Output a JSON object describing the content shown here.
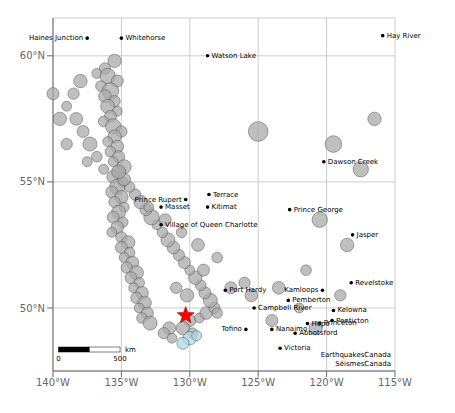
{
  "chart_data": {
    "type": "scatter",
    "xlim": [
      -140,
      -115
    ],
    "ylim": [
      47.5,
      61.5
    ],
    "xticks": [
      {
        "value": -140,
        "label": "140°W"
      },
      {
        "value": -135,
        "label": "135°W"
      },
      {
        "value": -130,
        "label": "130°W"
      },
      {
        "value": -125,
        "label": "125°W"
      },
      {
        "value": -120,
        "label": "120°W"
      },
      {
        "value": -115,
        "label": "115°W"
      }
    ],
    "yticks": [
      {
        "value": 50,
        "label": "50°N"
      },
      {
        "value": 55,
        "label": "55°N"
      },
      {
        "value": 60,
        "label": "60°N"
      }
    ],
    "grid": true,
    "series": [
      {
        "marker": "circle",
        "color": "#aaaaaa",
        "points": [
          {
            "x": -135.5,
            "y": 59.8,
            "mag": 5.5
          },
          {
            "x": -136.2,
            "y": 59.5,
            "mag": 5.2
          },
          {
            "x": -136.8,
            "y": 59.3,
            "mag": 5.0
          },
          {
            "x": -136.0,
            "y": 59.2,
            "mag": 5.8
          },
          {
            "x": -135.3,
            "y": 59.0,
            "mag": 5.3
          },
          {
            "x": -136.5,
            "y": 58.8,
            "mag": 5.1
          },
          {
            "x": -135.8,
            "y": 58.6,
            "mag": 6.0
          },
          {
            "x": -136.2,
            "y": 58.4,
            "mag": 5.4
          },
          {
            "x": -135.5,
            "y": 58.2,
            "mag": 5.2
          },
          {
            "x": -136.0,
            "y": 58.0,
            "mag": 5.6
          },
          {
            "x": -135.3,
            "y": 57.8,
            "mag": 5.0
          },
          {
            "x": -135.8,
            "y": 57.6,
            "mag": 5.3
          },
          {
            "x": -136.3,
            "y": 57.4,
            "mag": 5.1
          },
          {
            "x": -135.6,
            "y": 57.2,
            "mag": 5.8
          },
          {
            "x": -135.0,
            "y": 57.0,
            "mag": 5.2
          },
          {
            "x": -135.5,
            "y": 56.8,
            "mag": 5.5
          },
          {
            "x": -136.0,
            "y": 56.6,
            "mag": 5.0
          },
          {
            "x": -135.3,
            "y": 56.4,
            "mag": 5.4
          },
          {
            "x": -135.8,
            "y": 56.2,
            "mag": 5.1
          },
          {
            "x": -135.2,
            "y": 56.0,
            "mag": 5.3
          },
          {
            "x": -135.6,
            "y": 55.8,
            "mag": 5.0
          },
          {
            "x": -134.8,
            "y": 55.6,
            "mag": 5.6
          },
          {
            "x": -135.2,
            "y": 55.4,
            "mag": 5.2
          },
          {
            "x": -135.6,
            "y": 55.2,
            "mag": 5.4
          },
          {
            "x": -134.9,
            "y": 55.0,
            "mag": 5.1
          },
          {
            "x": -135.3,
            "y": 54.8,
            "mag": 5.8
          },
          {
            "x": -135.7,
            "y": 54.6,
            "mag": 5.3
          },
          {
            "x": -135.0,
            "y": 54.4,
            "mag": 5.5
          },
          {
            "x": -135.5,
            "y": 54.2,
            "mag": 5.2
          },
          {
            "x": -134.8,
            "y": 54.0,
            "mag": 5.0
          },
          {
            "x": -135.2,
            "y": 53.8,
            "mag": 5.6
          },
          {
            "x": -135.6,
            "y": 53.6,
            "mag": 5.3
          },
          {
            "x": -134.9,
            "y": 53.4,
            "mag": 5.1
          },
          {
            "x": -135.3,
            "y": 53.2,
            "mag": 5.4
          },
          {
            "x": -135.7,
            "y": 53.0,
            "mag": 5.0
          },
          {
            "x": -135.0,
            "y": 52.8,
            "mag": 5.2
          },
          {
            "x": -134.5,
            "y": 52.6,
            "mag": 5.5
          },
          {
            "x": -135.0,
            "y": 52.4,
            "mag": 5.3
          },
          {
            "x": -134.4,
            "y": 52.2,
            "mag": 5.1
          },
          {
            "x": -134.8,
            "y": 52.0,
            "mag": 5.0
          },
          {
            "x": -134.2,
            "y": 51.8,
            "mag": 5.4
          },
          {
            "x": -134.6,
            "y": 51.6,
            "mag": 5.2
          },
          {
            "x": -133.9,
            "y": 51.4,
            "mag": 5.6
          },
          {
            "x": -134.3,
            "y": 51.2,
            "mag": 5.3
          },
          {
            "x": -133.7,
            "y": 51.0,
            "mag": 5.1
          },
          {
            "x": -134.1,
            "y": 50.8,
            "mag": 5.0
          },
          {
            "x": -133.5,
            "y": 50.6,
            "mag": 5.4
          },
          {
            "x": -133.9,
            "y": 50.4,
            "mag": 5.2
          },
          {
            "x": -133.3,
            "y": 50.2,
            "mag": 5.5
          },
          {
            "x": -133.7,
            "y": 50.0,
            "mag": 5.0
          },
          {
            "x": -133.1,
            "y": 49.8,
            "mag": 5.3
          },
          {
            "x": -133.5,
            "y": 49.6,
            "mag": 5.1
          },
          {
            "x": -132.9,
            "y": 49.4,
            "mag": 5.6
          },
          {
            "x": -131.5,
            "y": 49.2,
            "mag": 5.4
          },
          {
            "x": -131.9,
            "y": 49.0,
            "mag": 5.2
          },
          {
            "x": -131.3,
            "y": 48.8,
            "mag": 5.0
          },
          {
            "x": -130.0,
            "y": 49.5,
            "mag": 5.3
          },
          {
            "x": -130.5,
            "y": 49.2,
            "mag": 5.5
          },
          {
            "x": -129.8,
            "y": 49.0,
            "mag": 5.1
          },
          {
            "x": -129.3,
            "y": 49.6,
            "mag": 5.0
          },
          {
            "x": -128.8,
            "y": 49.8,
            "mag": 5.4
          },
          {
            "x": -128.2,
            "y": 50.0,
            "mag": 5.2
          },
          {
            "x": -128.5,
            "y": 50.3,
            "mag": 5.6
          },
          {
            "x": -128.9,
            "y": 50.6,
            "mag": 5.3
          },
          {
            "x": -129.2,
            "y": 50.9,
            "mag": 5.1
          },
          {
            "x": -129.6,
            "y": 51.2,
            "mag": 5.5
          },
          {
            "x": -130.0,
            "y": 51.5,
            "mag": 5.0
          },
          {
            "x": -130.4,
            "y": 51.8,
            "mag": 5.3
          },
          {
            "x": -130.8,
            "y": 52.1,
            "mag": 5.2
          },
          {
            "x": -131.2,
            "y": 52.4,
            "mag": 5.4
          },
          {
            "x": -131.6,
            "y": 52.7,
            "mag": 5.6
          },
          {
            "x": -132.0,
            "y": 53.0,
            "mag": 5.1
          },
          {
            "x": -132.4,
            "y": 53.3,
            "mag": 5.0
          },
          {
            "x": -132.8,
            "y": 53.6,
            "mag": 5.8
          },
          {
            "x": -133.2,
            "y": 53.9,
            "mag": 5.3
          },
          {
            "x": -133.6,
            "y": 54.2,
            "mag": 5.5
          },
          {
            "x": -134.0,
            "y": 54.5,
            "mag": 5.2
          },
          {
            "x": -134.4,
            "y": 54.8,
            "mag": 5.1
          },
          {
            "x": -134.8,
            "y": 55.1,
            "mag": 5.4
          },
          {
            "x": -135.2,
            "y": 55.4,
            "mag": 5.6
          },
          {
            "x": -133.0,
            "y": 54.0,
            "mag": 5.0
          },
          {
            "x": -131.8,
            "y": 53.5,
            "mag": 5.3
          },
          {
            "x": -130.6,
            "y": 53.0,
            "mag": 5.1
          },
          {
            "x": -129.4,
            "y": 52.5,
            "mag": 5.4
          },
          {
            "x": -131.0,
            "y": 50.8,
            "mag": 5.2
          },
          {
            "x": -130.2,
            "y": 50.5,
            "mag": 5.5
          },
          {
            "x": -129.0,
            "y": 51.5,
            "mag": 5.3
          },
          {
            "x": -128.0,
            "y": 52.0,
            "mag": 5.1
          },
          {
            "x": -138.0,
            "y": 59.0,
            "mag": 5.5
          },
          {
            "x": -138.5,
            "y": 58.5,
            "mag": 5.2
          },
          {
            "x": -139.0,
            "y": 58.0,
            "mag": 5.0
          },
          {
            "x": -138.3,
            "y": 57.5,
            "mag": 5.4
          },
          {
            "x": -137.8,
            "y": 57.0,
            "mag": 5.3
          },
          {
            "x": -137.3,
            "y": 56.5,
            "mag": 5.6
          },
          {
            "x": -136.8,
            "y": 56.0,
            "mag": 5.1
          },
          {
            "x": -136.3,
            "y": 55.5,
            "mag": 5.0
          },
          {
            "x": -140.0,
            "y": 58.5,
            "mag": 5.3
          },
          {
            "x": -139.5,
            "y": 57.5,
            "mag": 5.5
          },
          {
            "x": -139.0,
            "y": 56.5,
            "mag": 5.2
          },
          {
            "x": -137.5,
            "y": 55.8,
            "mag": 5.0
          },
          {
            "x": -125.0,
            "y": 57.0,
            "mag": 6.5
          },
          {
            "x": -119.5,
            "y": 56.5,
            "mag": 6.0
          },
          {
            "x": -120.5,
            "y": 53.5,
            "mag": 5.8
          },
          {
            "x": -118.5,
            "y": 52.5,
            "mag": 5.5
          },
          {
            "x": -123.5,
            "y": 50.8,
            "mag": 5.4
          },
          {
            "x": -124.0,
            "y": 49.5,
            "mag": 5.3
          },
          {
            "x": -120.8,
            "y": 49.2,
            "mag": 5.5
          },
          {
            "x": -119.0,
            "y": 50.5,
            "mag": 5.2
          },
          {
            "x": -121.5,
            "y": 51.5,
            "mag": 5.1
          },
          {
            "x": -122.0,
            "y": 50.0,
            "mag": 5.0
          },
          {
            "x": -126.0,
            "y": 51.0,
            "mag": 5.2
          },
          {
            "x": -125.5,
            "y": 50.5,
            "mag": 5.4
          },
          {
            "x": -127.0,
            "y": 50.8,
            "mag": 5.3
          },
          {
            "x": -128.0,
            "y": 49.8,
            "mag": 5.1
          },
          {
            "x": -117.5,
            "y": 55.5,
            "mag": 5.8
          },
          {
            "x": -116.5,
            "y": 57.5,
            "mag": 5.5
          }
        ]
      },
      {
        "marker": "circle",
        "color": "#add8e6",
        "points": [
          {
            "x": -130.0,
            "y": 48.8,
            "mag": 5.5
          },
          {
            "x": -130.5,
            "y": 48.6,
            "mag": 5.3
          },
          {
            "x": -129.5,
            "y": 48.9,
            "mag": 5.0
          }
        ]
      },
      {
        "marker": "star",
        "color": "#ff0000",
        "points": [
          {
            "x": -130.3,
            "y": 49.7
          }
        ]
      },
      {
        "marker": "dot",
        "color": "#000000",
        "points": [
          {
            "x": -137.5,
            "y": 60.7,
            "label": "Haines Junction"
          },
          {
            "x": -135.0,
            "y": 60.7,
            "label": "Whitehorse"
          },
          {
            "x": -128.7,
            "y": 60.0,
            "label": "Watson Lake"
          },
          {
            "x": -115.9,
            "y": 60.8,
            "label": "Hay River"
          },
          {
            "x": -120.2,
            "y": 55.8,
            "label": "Dawson Creek"
          },
          {
            "x": -128.6,
            "y": 54.5,
            "label": "Terrace"
          },
          {
            "x": -130.3,
            "y": 54.3,
            "label": "Prince Rupert"
          },
          {
            "x": -128.7,
            "y": 54.0,
            "label": "Kitimat"
          },
          {
            "x": -132.1,
            "y": 54.0,
            "label": "Masset"
          },
          {
            "x": -132.1,
            "y": 53.3,
            "label": "Village of Queen Charlotte"
          },
          {
            "x": -122.7,
            "y": 53.9,
            "label": "Prince George"
          },
          {
            "x": -118.1,
            "y": 52.9,
            "label": "Jasper"
          },
          {
            "x": -127.4,
            "y": 50.7,
            "label": "Port Hardy"
          },
          {
            "x": -125.3,
            "y": 50.0,
            "label": "Campbell River"
          },
          {
            "x": -125.9,
            "y": 49.15,
            "label": "Tofino"
          },
          {
            "x": -124.0,
            "y": 49.15,
            "label": "Nanaimo"
          },
          {
            "x": -122.3,
            "y": 49.0,
            "label": "Abbotsford"
          },
          {
            "x": -123.4,
            "y": 48.4,
            "label": "Victoria"
          },
          {
            "x": -119.5,
            "y": 49.9,
            "label": "Kelowna"
          },
          {
            "x": -119.6,
            "y": 49.5,
            "label": "Penticton"
          },
          {
            "x": -120.5,
            "y": 49.4,
            "label": "Princeton"
          },
          {
            "x": -118.2,
            "y": 51.0,
            "label": "Revelstoke"
          },
          {
            "x": -120.3,
            "y": 50.7,
            "label": "Kamloops"
          },
          {
            "x": -122.8,
            "y": 50.3,
            "label": "Pemberton"
          },
          {
            "x": -121.4,
            "y": 49.38,
            "label": "Hope"
          }
        ]
      }
    ],
    "scale_bar": {
      "length": 4.5,
      "labels": [
        "0",
        "500"
      ],
      "unit": "km"
    },
    "annotations": [
      "EarthquakesCanada\nSéismesCanada"
    ]
  }
}
